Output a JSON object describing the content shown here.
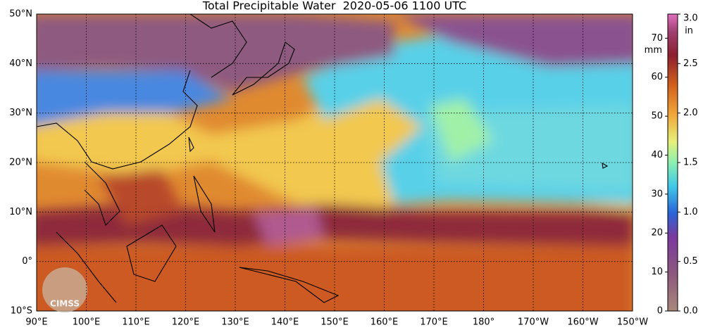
{
  "title": "Total Precipitable Water  2020-05-06 1100 UTC",
  "lat_labels": [
    "50°N",
    "40°N",
    "30°N",
    "20°N",
    "10°N",
    "0°",
    "10°S"
  ],
  "lon_labels": [
    "90°E",
    "100°E",
    "110°E",
    "120°E",
    "130°E",
    "140°E",
    "150°E",
    "160°E",
    "170°E",
    "180°",
    "170°W",
    "160°W",
    "150°W"
  ],
  "logo": "CIMSS",
  "colorbar": {
    "mm_unit": "mm",
    "in_unit": "in",
    "mm_lim": [
      0,
      76.2
    ],
    "mm_ticks": [
      0,
      10,
      20,
      30,
      40,
      50,
      60,
      70
    ],
    "in_ticks": [
      {
        "value": 0,
        "label": "0.0"
      },
      {
        "value": 0.5,
        "label": "0.5"
      },
      {
        "value": 1,
        "label": "1.0"
      },
      {
        "value": 1.5,
        "label": "1.5"
      },
      {
        "value": 2,
        "label": "2.0"
      },
      {
        "value": 2.5,
        "label": "2.5"
      },
      {
        "value": 3,
        "label": "3.0"
      }
    ]
  }
}
